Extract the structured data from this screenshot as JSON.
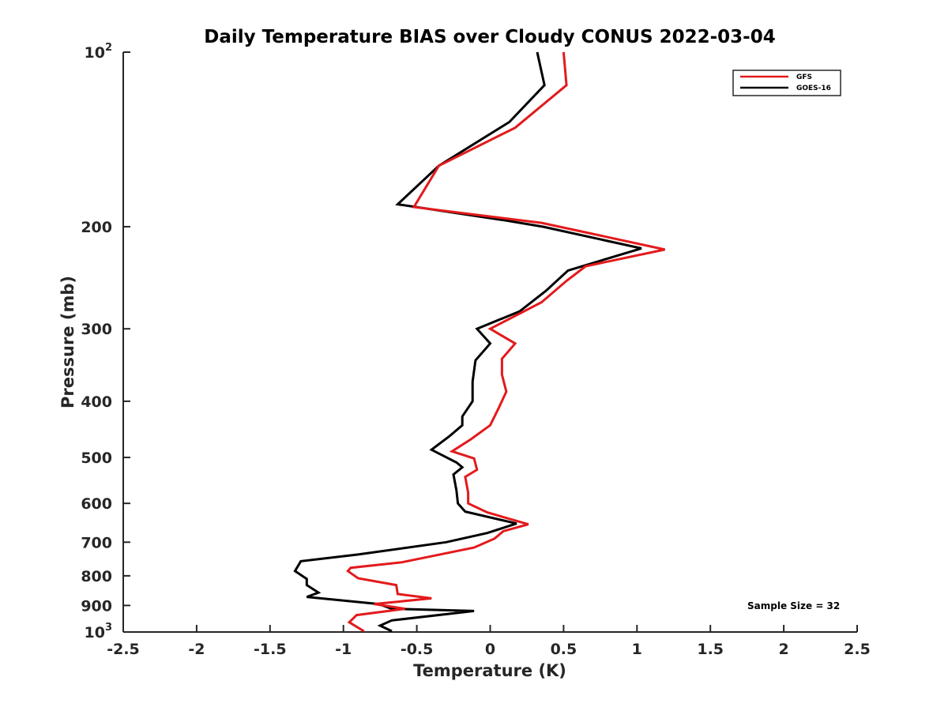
{
  "chart_data": {
    "type": "line",
    "title": "Daily Temperature BIAS over Cloudy CONUS 2022-03-04",
    "xlabel": "Temperature (K)",
    "ylabel": "Pressure (mb)",
    "xlim": [
      -2.5,
      2.5
    ],
    "ylim": [
      100,
      1000
    ],
    "yscale": "log",
    "y_reversed": true,
    "grid": false,
    "legend_position": "top-right",
    "x_ticks": [
      {
        "value": -2.5,
        "label": "-2.5"
      },
      {
        "value": -2,
        "label": "-2"
      },
      {
        "value": -1.5,
        "label": "-1.5"
      },
      {
        "value": -1,
        "label": "-1"
      },
      {
        "value": -0.5,
        "label": "-0.5"
      },
      {
        "value": 0,
        "label": "0"
      },
      {
        "value": 0.5,
        "label": "0.5"
      },
      {
        "value": 1,
        "label": "1"
      },
      {
        "value": 1.5,
        "label": "1.5"
      },
      {
        "value": 2,
        "label": "2"
      },
      {
        "value": 2.5,
        "label": "2.5"
      }
    ],
    "y_ticks": [
      {
        "value": 100,
        "label": "10",
        "sup": "2"
      },
      {
        "value": 200,
        "label": "200"
      },
      {
        "value": 300,
        "label": "300"
      },
      {
        "value": 400,
        "label": "400"
      },
      {
        "value": 500,
        "label": "500"
      },
      {
        "value": 600,
        "label": "600"
      },
      {
        "value": 700,
        "label": "700"
      },
      {
        "value": 800,
        "label": "800"
      },
      {
        "value": 900,
        "label": "900"
      },
      {
        "value": 1000,
        "label": "10",
        "sup": "3"
      }
    ],
    "series": [
      {
        "name": "GFS",
        "color": "#e31a1c",
        "points": [
          {
            "x": 0.5,
            "y": 100
          },
          {
            "x": 0.52,
            "y": 114
          },
          {
            "x": 0.17,
            "y": 135
          },
          {
            "x": -0.35,
            "y": 157
          },
          {
            "x": -0.52,
            "y": 185
          },
          {
            "x": 0.35,
            "y": 197
          },
          {
            "x": 0.55,
            "y": 202
          },
          {
            "x": 1.19,
            "y": 219
          },
          {
            "x": 0.65,
            "y": 234
          },
          {
            "x": 0.52,
            "y": 248
          },
          {
            "x": 0.35,
            "y": 270
          },
          {
            "x": 0.0,
            "y": 300
          },
          {
            "x": 0.17,
            "y": 318
          },
          {
            "x": 0.08,
            "y": 338
          },
          {
            "x": 0.08,
            "y": 360
          },
          {
            "x": 0.11,
            "y": 385
          },
          {
            "x": 0.06,
            "y": 410
          },
          {
            "x": 0.0,
            "y": 440
          },
          {
            "x": -0.13,
            "y": 465
          },
          {
            "x": -0.26,
            "y": 488
          },
          {
            "x": -0.11,
            "y": 502
          },
          {
            "x": -0.09,
            "y": 525
          },
          {
            "x": -0.17,
            "y": 540
          },
          {
            "x": -0.15,
            "y": 575
          },
          {
            "x": -0.15,
            "y": 600
          },
          {
            "x": -0.02,
            "y": 622
          },
          {
            "x": 0.26,
            "y": 652
          },
          {
            "x": 0.09,
            "y": 670
          },
          {
            "x": 0.03,
            "y": 690
          },
          {
            "x": -0.11,
            "y": 715
          },
          {
            "x": -0.6,
            "y": 758
          },
          {
            "x": -0.95,
            "y": 775
          },
          {
            "x": -0.97,
            "y": 785
          },
          {
            "x": -0.9,
            "y": 808
          },
          {
            "x": -0.64,
            "y": 830
          },
          {
            "x": -0.63,
            "y": 860
          },
          {
            "x": -0.4,
            "y": 875
          },
          {
            "x": -0.79,
            "y": 895
          },
          {
            "x": -0.58,
            "y": 912
          },
          {
            "x": -0.91,
            "y": 935
          },
          {
            "x": -0.96,
            "y": 962
          },
          {
            "x": -0.86,
            "y": 997
          }
        ]
      },
      {
        "name": "GOES-16",
        "color": "#000000",
        "points": [
          {
            "x": 0.32,
            "y": 100
          },
          {
            "x": 0.37,
            "y": 114
          },
          {
            "x": 0.13,
            "y": 132
          },
          {
            "x": -0.35,
            "y": 157
          },
          {
            "x": -0.63,
            "y": 183
          },
          {
            "x": 0.1,
            "y": 195
          },
          {
            "x": 0.36,
            "y": 200
          },
          {
            "x": 1.03,
            "y": 218
          },
          {
            "x": 0.53,
            "y": 238
          },
          {
            "x": 0.38,
            "y": 258
          },
          {
            "x": 0.2,
            "y": 280
          },
          {
            "x": -0.09,
            "y": 300
          },
          {
            "x": 0.0,
            "y": 318
          },
          {
            "x": -0.1,
            "y": 340
          },
          {
            "x": -0.12,
            "y": 370
          },
          {
            "x": -0.12,
            "y": 400
          },
          {
            "x": -0.19,
            "y": 425
          },
          {
            "x": -0.19,
            "y": 440
          },
          {
            "x": -0.28,
            "y": 460
          },
          {
            "x": -0.4,
            "y": 485
          },
          {
            "x": -0.23,
            "y": 510
          },
          {
            "x": -0.19,
            "y": 520
          },
          {
            "x": -0.25,
            "y": 535
          },
          {
            "x": -0.23,
            "y": 570
          },
          {
            "x": -0.22,
            "y": 600
          },
          {
            "x": -0.17,
            "y": 620
          },
          {
            "x": 0.18,
            "y": 650
          },
          {
            "x": -0.02,
            "y": 675
          },
          {
            "x": -0.3,
            "y": 700
          },
          {
            "x": -0.9,
            "y": 735
          },
          {
            "x": -1.29,
            "y": 755
          },
          {
            "x": -1.33,
            "y": 785
          },
          {
            "x": -1.25,
            "y": 810
          },
          {
            "x": -1.25,
            "y": 830
          },
          {
            "x": -1.17,
            "y": 855
          },
          {
            "x": -1.25,
            "y": 870
          },
          {
            "x": -0.76,
            "y": 895
          },
          {
            "x": -0.67,
            "y": 912
          },
          {
            "x": -0.11,
            "y": 920
          },
          {
            "x": -0.67,
            "y": 955
          },
          {
            "x": -0.75,
            "y": 975
          },
          {
            "x": -0.67,
            "y": 997
          }
        ]
      }
    ],
    "annotation": "Sample Size = 32"
  }
}
